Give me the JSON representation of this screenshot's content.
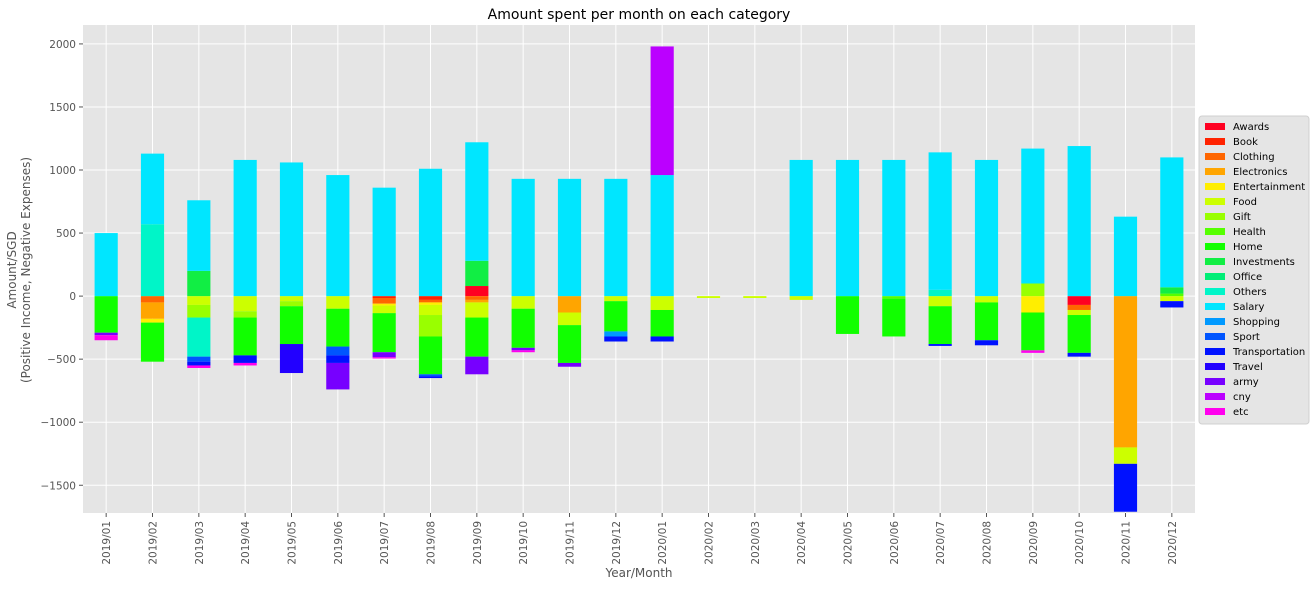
{
  "chart_data": {
    "type": "bar",
    "stacked": true,
    "title": "Amount spent per month on each category",
    "xlabel": "Year/Month",
    "ylabel_lines": [
      "Amount/SGD",
      "(Positive Income, Negative Expenses)"
    ],
    "ylim": [
      -1720,
      2150
    ],
    "yticks": [
      -1500,
      -1000,
      -500,
      0,
      500,
      1000,
      1500,
      2000
    ],
    "ytick_labels": [
      "−1500",
      "−1000",
      "−500",
      "0",
      "500",
      "1000",
      "1500",
      "2000"
    ],
    "grid": true,
    "legend_position": "right",
    "categories": [
      "2019/01",
      "2019/02",
      "2019/03",
      "2019/04",
      "2019/05",
      "2019/06",
      "2019/07",
      "2019/08",
      "2019/09",
      "2019/10",
      "2019/11",
      "2019/12",
      "2020/01",
      "2020/02",
      "2020/03",
      "2020/04",
      "2020/05",
      "2020/06",
      "2020/07",
      "2020/08",
      "2020/09",
      "2020/10",
      "2020/11",
      "2020/12"
    ],
    "series": [
      {
        "name": "Awards",
        "color": "#ff0022",
        "values": [
          0,
          0,
          0,
          0,
          0,
          0,
          0,
          0,
          80,
          0,
          0,
          0,
          0,
          0,
          0,
          0,
          0,
          0,
          0,
          0,
          0,
          -70,
          0,
          0
        ]
      },
      {
        "name": "Book",
        "color": "#ff2200",
        "values": [
          0,
          0,
          0,
          0,
          0,
          0,
          -15,
          -30,
          0,
          0,
          0,
          0,
          0,
          0,
          0,
          0,
          0,
          0,
          0,
          0,
          0,
          0,
          0,
          0
        ]
      },
      {
        "name": "Clothing",
        "color": "#ff6600",
        "values": [
          0,
          -50,
          0,
          0,
          0,
          0,
          -45,
          -20,
          -30,
          0,
          0,
          0,
          0,
          0,
          0,
          0,
          0,
          0,
          0,
          0,
          0,
          -40,
          0,
          0
        ]
      },
      {
        "name": "Electronics",
        "color": "#ffa500",
        "values": [
          0,
          -130,
          0,
          0,
          0,
          0,
          0,
          0,
          -20,
          0,
          -130,
          0,
          0,
          0,
          0,
          0,
          0,
          0,
          0,
          0,
          0,
          0,
          -1200,
          0
        ]
      },
      {
        "name": "Entertainment",
        "color": "#ffee00",
        "values": [
          0,
          -30,
          0,
          0,
          0,
          0,
          -15,
          -20,
          0,
          0,
          0,
          0,
          0,
          0,
          0,
          0,
          0,
          0,
          0,
          0,
          -130,
          0,
          0,
          0
        ]
      },
      {
        "name": "Food",
        "color": "#ccff00",
        "values": [
          0,
          0,
          -70,
          -120,
          -40,
          -100,
          -60,
          -80,
          -120,
          -100,
          -100,
          -40,
          -110,
          -15,
          -15,
          -30,
          0,
          0,
          -80,
          -50,
          0,
          -40,
          -130,
          -40
        ]
      },
      {
        "name": "Gift",
        "color": "#99ff00",
        "values": [
          0,
          0,
          -100,
          -50,
          -40,
          0,
          0,
          -170,
          0,
          0,
          0,
          0,
          0,
          0,
          0,
          0,
          0,
          0,
          0,
          0,
          100,
          0,
          0,
          0
        ]
      },
      {
        "name": "Health",
        "color": "#55ff00",
        "values": [
          0,
          0,
          0,
          0,
          0,
          0,
          0,
          0,
          0,
          0,
          0,
          0,
          0,
          0,
          0,
          0,
          0,
          -20,
          0,
          0,
          0,
          0,
          0,
          20
        ]
      },
      {
        "name": "Home",
        "color": "#11ff00",
        "values": [
          -290,
          -310,
          0,
          -300,
          -300,
          -300,
          -310,
          -300,
          -310,
          -310,
          -300,
          -240,
          -210,
          0,
          0,
          0,
          -300,
          -300,
          -300,
          -300,
          -300,
          -300,
          0,
          0
        ]
      },
      {
        "name": "Investments",
        "color": "#11ee44",
        "values": [
          0,
          0,
          200,
          0,
          0,
          0,
          0,
          0,
          200,
          0,
          0,
          0,
          0,
          0,
          0,
          0,
          0,
          0,
          0,
          0,
          0,
          0,
          0,
          50
        ]
      },
      {
        "name": "Office",
        "color": "#00ee77",
        "values": [
          0,
          0,
          0,
          0,
          0,
          0,
          0,
          0,
          0,
          0,
          0,
          0,
          0,
          0,
          0,
          0,
          0,
          0,
          0,
          0,
          0,
          0,
          0,
          0
        ]
      },
      {
        "name": "Others",
        "color": "#00f5c8",
        "values": [
          0,
          570,
          -310,
          0,
          0,
          0,
          0,
          0,
          0,
          0,
          0,
          0,
          0,
          0,
          0,
          0,
          0,
          0,
          50,
          0,
          0,
          0,
          0,
          0
        ]
      },
      {
        "name": "Salary",
        "color": "#00e6ff",
        "values": [
          500,
          560,
          560,
          1080,
          1060,
          960,
          860,
          1010,
          940,
          930,
          930,
          930,
          960,
          0,
          0,
          1080,
          1080,
          1080,
          1090,
          1080,
          1070,
          1190,
          630,
          1030
        ]
      },
      {
        "name": "Shopping",
        "color": "#0099ff",
        "values": [
          0,
          0,
          0,
          0,
          0,
          0,
          0,
          0,
          0,
          0,
          0,
          -40,
          0,
          0,
          0,
          0,
          0,
          0,
          0,
          0,
          0,
          0,
          0,
          0
        ]
      },
      {
        "name": "Sport",
        "color": "#0055ff",
        "values": [
          0,
          0,
          -40,
          0,
          0,
          -70,
          0,
          -15,
          0,
          0,
          0,
          0,
          0,
          0,
          0,
          0,
          0,
          0,
          0,
          0,
          0,
          0,
          0,
          0
        ]
      },
      {
        "name": "Transportation",
        "color": "#0011ff",
        "values": [
          0,
          0,
          -30,
          -60,
          0,
          -60,
          0,
          -15,
          0,
          0,
          0,
          -40,
          -40,
          0,
          0,
          0,
          0,
          0,
          -15,
          -40,
          0,
          -30,
          -380,
          -50
        ]
      },
      {
        "name": "Travel",
        "color": "#2200ff",
        "values": [
          0,
          0,
          0,
          0,
          -230,
          0,
          0,
          0,
          0,
          0,
          0,
          0,
          0,
          0,
          0,
          0,
          0,
          0,
          0,
          0,
          0,
          0,
          0,
          0
        ]
      },
      {
        "name": "army",
        "color": "#7700ff",
        "values": [
          -20,
          0,
          0,
          0,
          0,
          -210,
          -40,
          0,
          -140,
          -20,
          -30,
          0,
          0,
          0,
          0,
          0,
          0,
          0,
          0,
          0,
          0,
          0,
          0,
          0
        ]
      },
      {
        "name": "cny",
        "color": "#bb00ff",
        "values": [
          0,
          0,
          0,
          0,
          0,
          0,
          0,
          0,
          0,
          0,
          0,
          0,
          1020,
          0,
          0,
          0,
          0,
          0,
          0,
          0,
          0,
          0,
          0,
          0
        ]
      },
      {
        "name": "etc",
        "color": "#ff00ee",
        "values": [
          -40,
          0,
          -20,
          -20,
          0,
          0,
          -10,
          0,
          0,
          -15,
          0,
          0,
          0,
          0,
          0,
          0,
          0,
          0,
          0,
          0,
          -20,
          0,
          0,
          0
        ]
      }
    ]
  }
}
